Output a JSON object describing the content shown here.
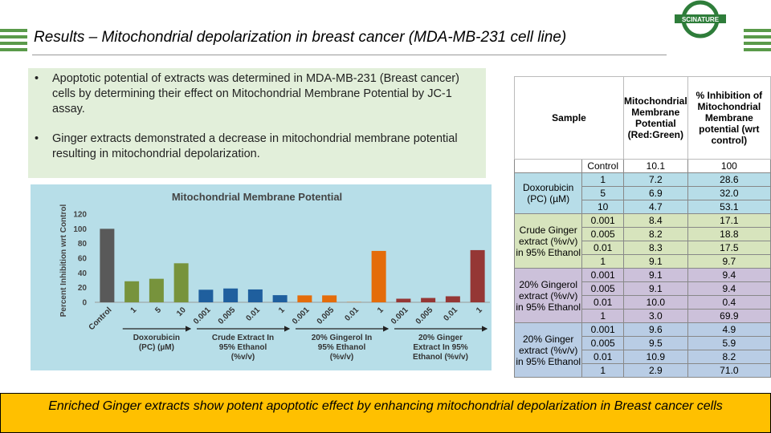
{
  "header": {
    "title": "Results – Mitochondrial depolarization in breast cancer (MDA-MB-231 cell line)",
    "logo": "SCINATURE"
  },
  "bullets": [
    "Apoptotic potential of extracts was determined in MDA-MB-231 (Breast cancer) cells by determining their effect on Mitochondrial Membrane Potential by JC-1 assay.",
    "Ginger extracts demonstrated a decrease in mitochondrial membrane potential resulting in mitochondrial depolarization."
  ],
  "chart_data": {
    "type": "bar",
    "title": "Mitochondrial Membrane Potential",
    "y_label": "Percent Inhibition wrt Control",
    "categories": [
      "Control",
      "1",
      "5",
      "10",
      "0.001",
      "0.005",
      "0.01",
      "1",
      "0.001",
      "0.005",
      "0.01",
      "1",
      "0.001",
      "0.005",
      "0.01",
      "1"
    ],
    "values": [
      100,
      28.6,
      32.0,
      53.1,
      17.1,
      18.8,
      17.5,
      9.7,
      9.4,
      9.4,
      0.4,
      69.9,
      4.9,
      5.9,
      8.2,
      71.0
    ],
    "colors": [
      "#595959",
      "#77933c",
      "#77933c",
      "#77933c",
      "#1f5f9e",
      "#1f5f9e",
      "#1f5f9e",
      "#1f5f9e",
      "#e46c0a",
      "#e46c0a",
      "#e46c0a",
      "#e46c0a",
      "#953735",
      "#953735",
      "#953735",
      "#953735"
    ],
    "groups": [
      {
        "label": [
          "Doxorubicin",
          "(PC) (µM)"
        ],
        "color": "#77933c"
      },
      {
        "label": [
          "Crude Extract In",
          "95% Ethanol",
          "(%v/v)"
        ],
        "color": "#1f5f9e"
      },
      {
        "label": [
          "20% Gingerol In",
          "95% Ethanol",
          "(%v/v)"
        ],
        "color": "#e46c0a"
      },
      {
        "label": [
          "20% Ginger",
          "Extract In 95%",
          "Ethanol (%v/v)"
        ],
        "color": "#953735"
      }
    ],
    "ylim": [
      0,
      120
    ],
    "yticks": [
      0,
      20,
      40,
      60,
      80,
      100,
      120
    ],
    "grid": false
  },
  "table": {
    "header": [
      "Sample",
      "Mitochondrial Membrane Potential (Red:Green)",
      "% Inhibition of Mitochondrial Membrane potential (wrt control)"
    ],
    "control": [
      "Control",
      "10.1",
      "100"
    ],
    "groups": [
      {
        "sample": "Doxorubicin (PC) (µM)",
        "color": "#b7dde8",
        "rows": [
          [
            "1",
            "7.2",
            "28.6"
          ],
          [
            "5",
            "6.9",
            "32.0"
          ],
          [
            "10",
            "4.7",
            "53.1"
          ]
        ]
      },
      {
        "sample": "Crude Ginger extract (%v/v) in 95% Ethanol",
        "color": "#d7e4bd",
        "rows": [
          [
            "0.001",
            "8.4",
            "17.1"
          ],
          [
            "0.005",
            "8.2",
            "18.8"
          ],
          [
            "0.01",
            "8.3",
            "17.5"
          ],
          [
            "1",
            "9.1",
            "9.7"
          ]
        ]
      },
      {
        "sample": "20% Gingerol extract (%v/v) in 95% Ethanol",
        "color": "#ccc1da",
        "rows": [
          [
            "0.001",
            "9.1",
            "9.4"
          ],
          [
            "0.005",
            "9.1",
            "9.4"
          ],
          [
            "0.01",
            "10.0",
            "0.4"
          ],
          [
            "1",
            "3.0",
            "69.9"
          ]
        ]
      },
      {
        "sample": "20% Ginger extract (%v/v) in 95% Ethanol",
        "color": "#b9cde5",
        "rows": [
          [
            "0.001",
            "9.6",
            "4.9"
          ],
          [
            "0.005",
            "9.5",
            "5.9"
          ],
          [
            "0.01",
            "10.9",
            "8.2"
          ],
          [
            "1",
            "2.9",
            "71.0"
          ]
        ]
      }
    ]
  },
  "footer": "Enriched Ginger extracts show potent apoptotic effect by enhancing mitochondrial depolarization in Breast cancer cells"
}
